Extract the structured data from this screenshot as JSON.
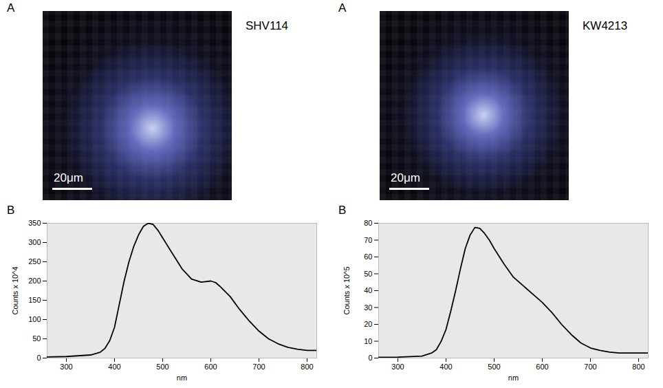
{
  "images": [
    {
      "panel": "A",
      "title": "SHV114",
      "scale_bar": "20μm"
    },
    {
      "panel": "A",
      "title": "KW4213",
      "scale_bar": "20μm"
    }
  ],
  "chart_data": [
    {
      "type": "line",
      "panel": "B",
      "x_label": "nm",
      "y_label": "Counts x 10^4",
      "color": "#000000",
      "x": [
        260,
        300,
        350,
        370,
        380,
        390,
        400,
        410,
        420,
        430,
        440,
        450,
        460,
        470,
        480,
        490,
        500,
        520,
        540,
        560,
        580,
        600,
        610,
        620,
        640,
        660,
        680,
        700,
        720,
        740,
        760,
        780,
        800,
        820
      ],
      "values": [
        3,
        4,
        8,
        15,
        25,
        45,
        80,
        140,
        200,
        250,
        290,
        320,
        342,
        350,
        347,
        332,
        312,
        272,
        232,
        205,
        197,
        200,
        196,
        185,
        160,
        126,
        96,
        70,
        50,
        37,
        28,
        23,
        20,
        20
      ],
      "xlim": [
        260,
        820
      ],
      "xticks": [
        300,
        400,
        500,
        600,
        700,
        800
      ],
      "ylim": [
        0,
        350
      ],
      "yticks": [
        0,
        50,
        100,
        150,
        200,
        250,
        300,
        350
      ],
      "grid": false
    },
    {
      "type": "line",
      "panel": "B",
      "x_label": "nm",
      "y_label": "Counts x 10^5",
      "color": "#000000",
      "x": [
        260,
        300,
        350,
        370,
        380,
        390,
        400,
        410,
        420,
        430,
        440,
        450,
        460,
        470,
        480,
        490,
        500,
        520,
        540,
        560,
        580,
        600,
        620,
        640,
        660,
        680,
        700,
        720,
        740,
        760,
        780,
        800,
        820
      ],
      "values": [
        0.5,
        0.6,
        1.2,
        3,
        5,
        10,
        17,
        28,
        40,
        53,
        65,
        73,
        77.5,
        77,
        74,
        70,
        65,
        56,
        48,
        43,
        38,
        33,
        27,
        20,
        14,
        9,
        6,
        4.5,
        3.5,
        3,
        3,
        3,
        3
      ],
      "xlim": [
        260,
        820
      ],
      "xticks": [
        300,
        400,
        500,
        600,
        700,
        800
      ],
      "ylim": [
        0,
        80
      ],
      "yticks": [
        0,
        10,
        20,
        30,
        40,
        50,
        60,
        70,
        80
      ],
      "grid": false
    }
  ]
}
